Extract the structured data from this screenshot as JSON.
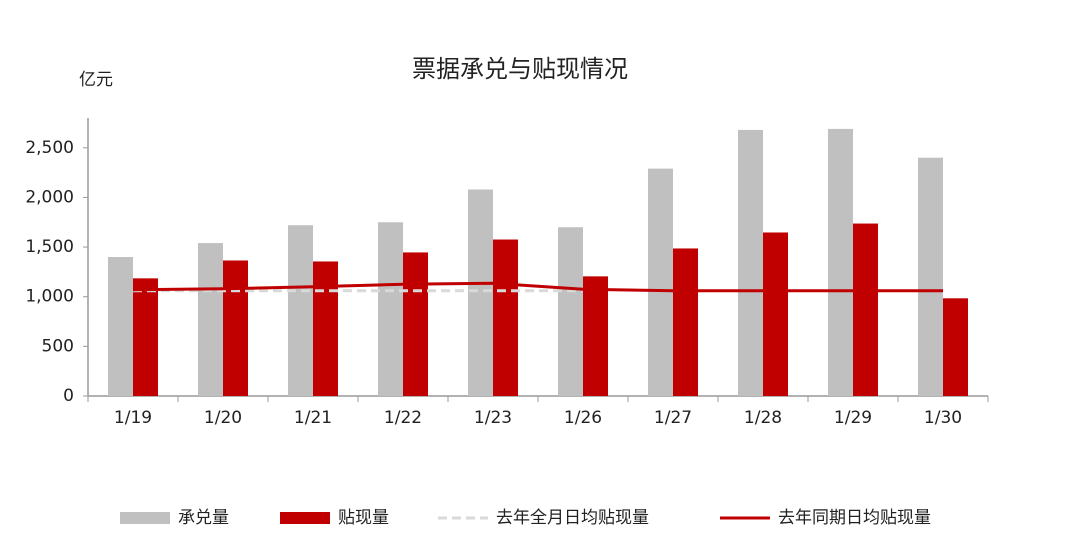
{
  "chart_data": {
    "type": "bar",
    "title": "票据承兑与贴现情况",
    "y_label": "亿元",
    "categories": [
      "1/19",
      "1/20",
      "1/21",
      "1/22",
      "1/23",
      "1/26",
      "1/27",
      "1/28",
      "1/29",
      "1/30"
    ],
    "series": [
      {
        "name": "承兑量",
        "type": "bar",
        "color": "#c0c0c0",
        "values": [
          1400,
          1540,
          1720,
          1750,
          2080,
          1700,
          2290,
          2680,
          2690,
          2400
        ]
      },
      {
        "name": "贴现量",
        "type": "bar",
        "color": "#c00000",
        "values": [
          1185,
          1365,
          1355,
          1446,
          1576,
          1205,
          1486,
          1647,
          1737,
          984
        ]
      },
      {
        "name": "去年全月日均贴现量",
        "type": "line",
        "dashed": true,
        "color": "#d9d9d9",
        "values": [
          1060,
          1060,
          1060,
          1060,
          1060,
          1060,
          null,
          null,
          null,
          null
        ]
      },
      {
        "name": "去年同期日均贴现量",
        "type": "line",
        "dashed": false,
        "color": "#c00000",
        "values": [
          1070,
          1080,
          1100,
          1125,
          1135,
          1075,
          1060,
          1060,
          1060,
          1060
        ]
      }
    ],
    "ylim": [
      0,
      2800
    ],
    "yticks": [
      0,
      500,
      {
        "value": 1000,
        "label": "1,000"
      },
      {
        "value": 1500,
        "label": "1,500"
      },
      {
        "value": 2000,
        "label": "2,000"
      },
      {
        "value": 2500,
        "label": "2,500"
      }
    ],
    "legend": "bottom"
  }
}
